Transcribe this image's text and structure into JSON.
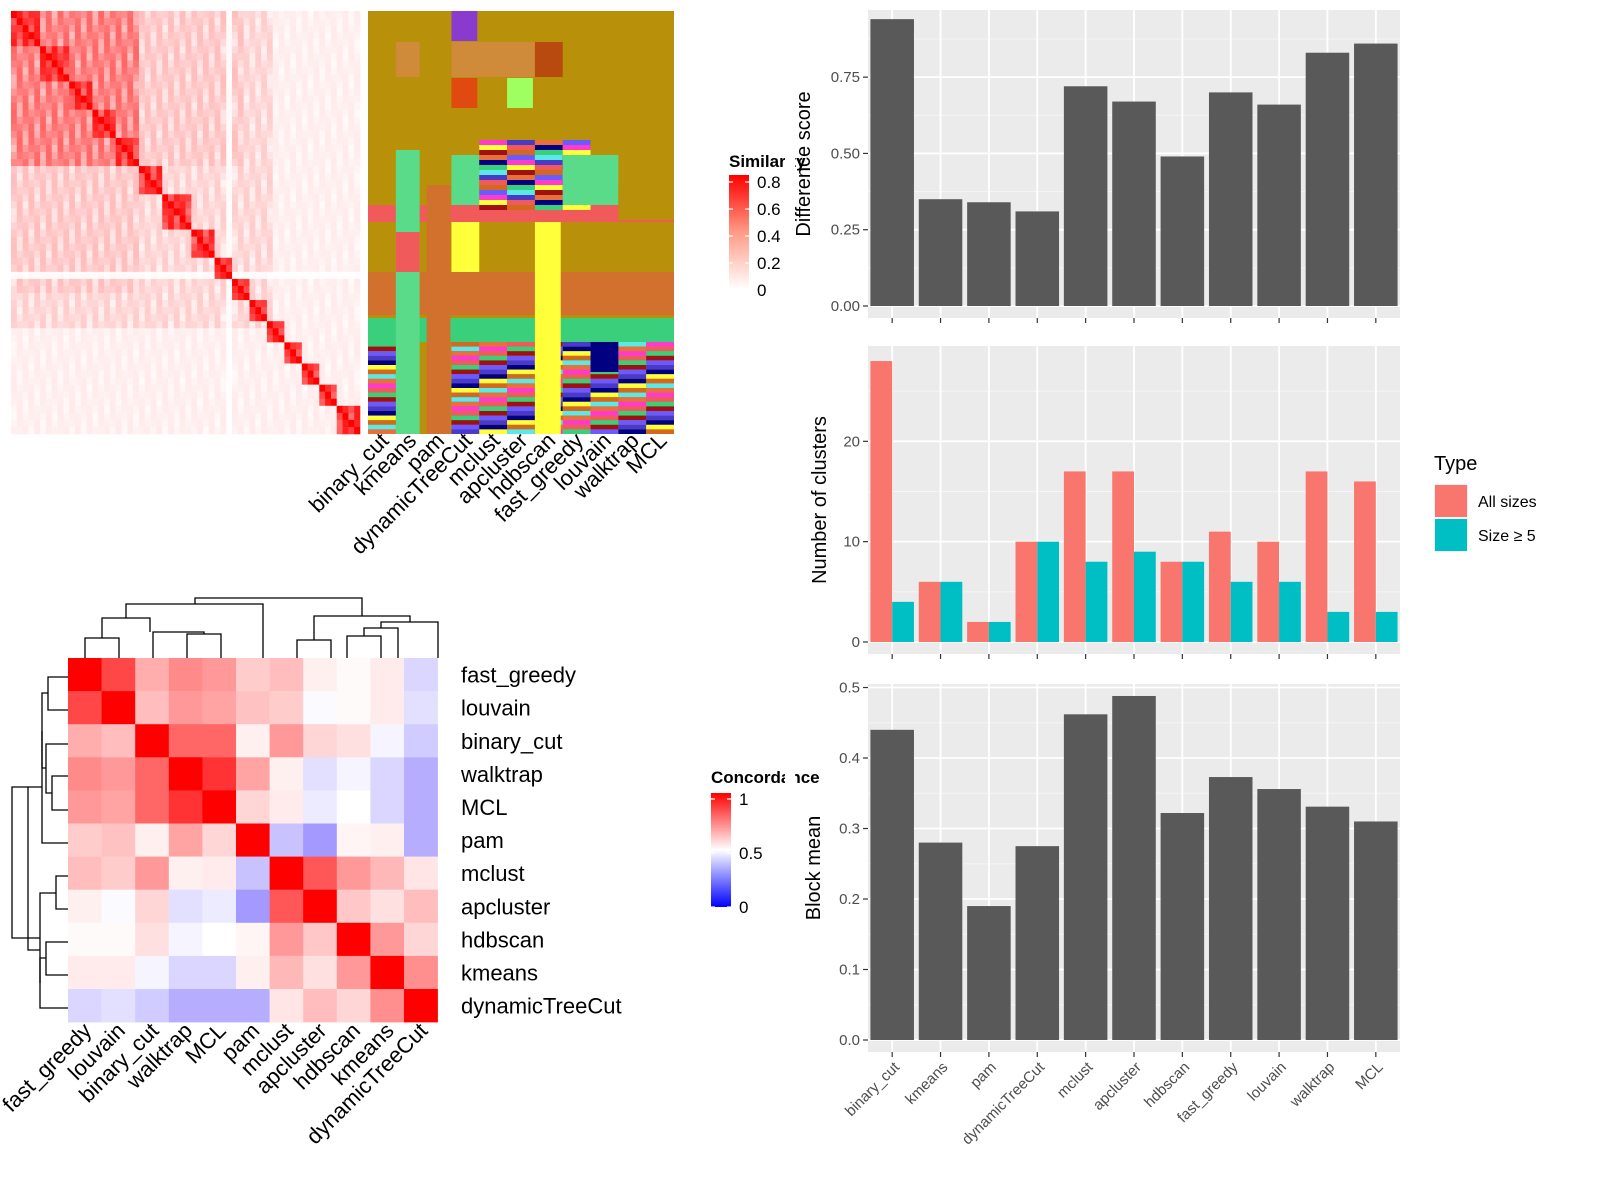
{
  "similarity_heatmap": {
    "legend_title": "Similarity",
    "legend_ticks": [
      "0.8",
      "0.6",
      "0.4",
      "0.2",
      "0"
    ],
    "method_labels": [
      "binary_cut",
      "kmeans",
      "pam",
      "dynamicTreeCut",
      "mclust",
      "apcluster",
      "hdbscan",
      "fast_greedy",
      "louvain",
      "walktrap",
      "MCL"
    ],
    "colors": {
      "high": "#FF0000",
      "low": "#FFFFFF",
      "background": "#B8900A"
    }
  },
  "concordance_heatmap": {
    "legend_title": "Concordance",
    "legend_ticks": [
      "1",
      "0.5",
      "0"
    ],
    "labels": [
      "fast_greedy",
      "louvain",
      "binary_cut",
      "walktrap",
      "MCL",
      "pam",
      "mclust",
      "apcluster",
      "hdbscan",
      "kmeans",
      "dynamicTreeCut"
    ],
    "colors": {
      "high": "#FF0000",
      "mid": "#FFFFFF",
      "low": "#0000FF"
    }
  },
  "chart_data": [
    {
      "type": "bar",
      "categories": [
        "binary_cut",
        "kmeans",
        "pam",
        "dynamicTreeCut",
        "mclust",
        "apcluster",
        "hdbscan",
        "fast_greedy",
        "louvain",
        "walktrap",
        "MCL"
      ],
      "values": [
        0.94,
        0.35,
        0.34,
        0.31,
        0.72,
        0.67,
        0.49,
        0.7,
        0.66,
        0.83,
        0.86
      ],
      "xlabel": "",
      "ylabel": "Difference score",
      "ylim": [
        0,
        0.97
      ],
      "yticks": [
        "0.00",
        "0.25",
        "0.50",
        "0.75"
      ],
      "yticks_values": [
        0,
        0.25,
        0.5,
        0.75
      ],
      "bar_color": "#595959",
      "grid": true
    },
    {
      "type": "bar",
      "categories": [
        "binary_cut",
        "kmeans",
        "pam",
        "dynamicTreeCut",
        "mclust",
        "apcluster",
        "hdbscan",
        "fast_greedy",
        "louvain",
        "walktrap",
        "MCL"
      ],
      "series": [
        {
          "name": "All sizes",
          "values": [
            28,
            6,
            2,
            10,
            17,
            17,
            8,
            11,
            10,
            17,
            16
          ],
          "color": "#F8766D"
        },
        {
          "name": "Size ≥ 5",
          "values": [
            4,
            6,
            2,
            10,
            8,
            9,
            8,
            6,
            6,
            3,
            3
          ],
          "color": "#00BFC4"
        }
      ],
      "xlabel": "",
      "ylabel": "Number of clusters",
      "ylim": [
        0,
        29.5
      ],
      "yticks": [
        "0",
        "10",
        "20"
      ],
      "yticks_values": [
        0,
        10,
        20
      ],
      "legend_title": "Type",
      "legend_position": "right",
      "grid": true
    },
    {
      "type": "bar",
      "categories": [
        "binary_cut",
        "kmeans",
        "pam",
        "dynamicTreeCut",
        "mclust",
        "apcluster",
        "hdbscan",
        "fast_greedy",
        "louvain",
        "walktrap",
        "MCL"
      ],
      "values": [
        0.44,
        0.28,
        0.19,
        0.275,
        0.462,
        0.488,
        0.322,
        0.373,
        0.356,
        0.331,
        0.31
      ],
      "xlabel": "",
      "ylabel": "Block mean",
      "ylim": [
        0,
        0.505
      ],
      "yticks": [
        "0.0",
        "0.1",
        "0.2",
        "0.3",
        "0.4",
        "0.5"
      ],
      "yticks_values": [
        0,
        0.1,
        0.2,
        0.3,
        0.4,
        0.5
      ],
      "bar_color": "#595959",
      "grid": true
    }
  ]
}
